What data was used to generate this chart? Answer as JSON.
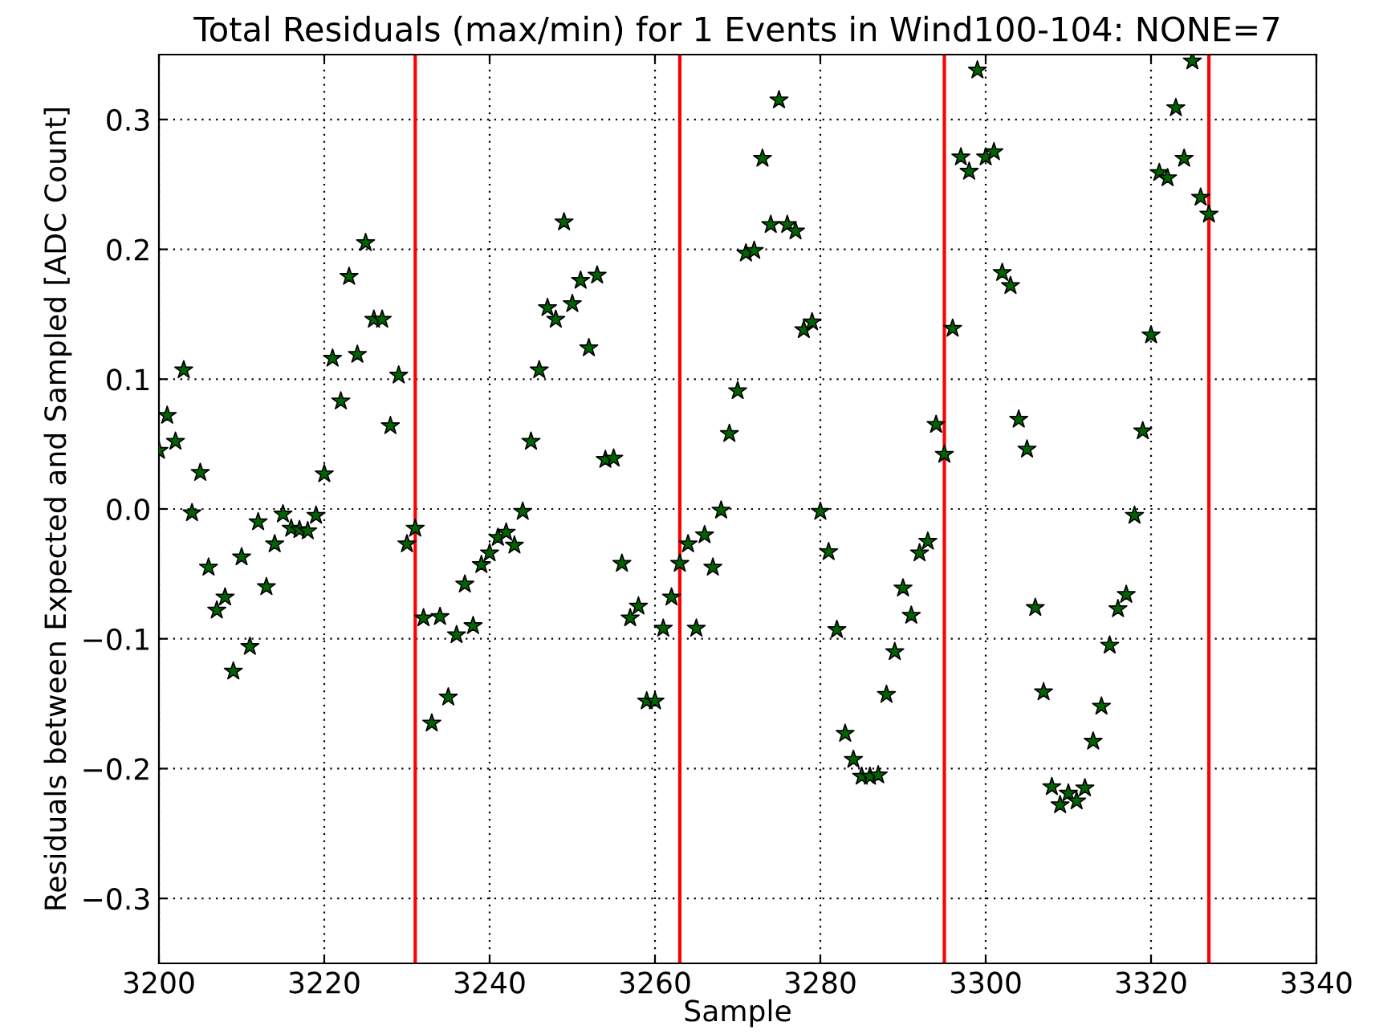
{
  "chart_data": {
    "type": "scatter",
    "title": "Total Residuals (max/min) for 1 Events in Wind100-104: NONE=7",
    "xlabel": "Sample",
    "ylabel": "Residuals between Expected and Sampled [ADC Count]",
    "x": [
      3200,
      3201,
      3202,
      3203,
      3204,
      3205,
      3206,
      3207,
      3208,
      3209,
      3210,
      3211,
      3212,
      3213,
      3214,
      3215,
      3216,
      3217,
      3218,
      3219,
      3220,
      3221,
      3222,
      3223,
      3224,
      3225,
      3226,
      3227,
      3228,
      3229,
      3230,
      3231,
      3232,
      3233,
      3234,
      3235,
      3236,
      3237,
      3238,
      3239,
      3240,
      3241,
      3242,
      3243,
      3244,
      3245,
      3246,
      3247,
      3248,
      3249,
      3250,
      3251,
      3252,
      3253,
      3254,
      3255,
      3256,
      3257,
      3258,
      3259,
      3260,
      3261,
      3262,
      3263,
      3264,
      3265,
      3266,
      3267,
      3268,
      3269,
      3270,
      3271,
      3272,
      3273,
      3274,
      3275,
      3276,
      3277,
      3278,
      3279,
      3280,
      3281,
      3282,
      3283,
      3284,
      3285,
      3286,
      3287,
      3288,
      3289,
      3290,
      3291,
      3292,
      3293,
      3294,
      3295,
      3296,
      3297,
      3298,
      3299,
      3300,
      3301,
      3302,
      3303,
      3304,
      3305,
      3306,
      3307,
      3308,
      3309,
      3310,
      3311,
      3312,
      3313,
      3314,
      3315,
      3316,
      3317,
      3318,
      3319,
      3320,
      3321,
      3322,
      3323,
      3324,
      3325,
      3326,
      3327
    ],
    "series": [
      {
        "color": "#006400",
        "values": [
          0.045,
          0.072,
          0.052,
          0.107,
          -0.003,
          0.028,
          -0.045,
          -0.078,
          -0.068,
          -0.125,
          -0.037,
          -0.106,
          -0.01,
          -0.06,
          -0.027,
          -0.004,
          -0.015,
          -0.016,
          -0.017,
          -0.005,
          0.027,
          0.116,
          0.083,
          0.179,
          0.119,
          0.205,
          0.146,
          0.146,
          0.064,
          0.103,
          -0.027,
          -0.015,
          -0.084,
          -0.165,
          -0.083,
          -0.145,
          -0.097,
          -0.058,
          -0.09,
          -0.043,
          -0.034,
          -0.022,
          -0.018,
          -0.028,
          -0.002,
          0.052,
          0.107,
          0.155,
          0.146,
          0.221,
          0.158,
          0.176,
          0.124,
          0.18,
          0.038,
          0.039,
          -0.042,
          -0.084,
          -0.075,
          -0.148,
          -0.148,
          -0.092,
          -0.068,
          -0.042,
          -0.027,
          -0.092,
          -0.02,
          -0.045,
          -0.001,
          0.058,
          0.091,
          0.197,
          0.199,
          0.27,
          0.219,
          0.315,
          0.219,
          0.214,
          0.138,
          0.144,
          -0.002,
          -0.033,
          -0.093,
          -0.173,
          -0.193,
          -0.206,
          -0.206,
          -0.205,
          -0.143,
          -0.11,
          -0.061,
          -0.082,
          -0.034,
          -0.025,
          0.065,
          0.042,
          0.139,
          0.271,
          0.26,
          0.338,
          0.271,
          0.275,
          0.182,
          0.172,
          0.069,
          0.046,
          -0.076,
          -0.141,
          -0.214,
          -0.228,
          -0.219,
          -0.225,
          -0.215,
          -0.179,
          -0.152,
          -0.105,
          -0.077,
          -0.066,
          -0.005,
          0.06,
          0.134,
          0.259,
          0.255,
          0.309,
          0.27,
          0.345,
          0.24,
          0.227
        ]
      }
    ],
    "xlim": [
      3200,
      3340
    ],
    "xticks": [
      3200,
      3220,
      3240,
      3260,
      3280,
      3300,
      3320,
      3340
    ],
    "ylim": [
      -0.35,
      0.35
    ],
    "yticks": [
      {
        "value": -0.3,
        "label": "−0.3"
      },
      {
        "value": -0.2,
        "label": "−0.2"
      },
      {
        "value": -0.1,
        "label": "−0.1"
      },
      {
        "value": 0.0,
        "label": "0.0"
      },
      {
        "value": 0.1,
        "label": "0.1"
      },
      {
        "value": 0.2,
        "label": "0.2"
      },
      {
        "value": 0.3,
        "label": "0.3"
      }
    ],
    "ref_lines": [
      {
        "axis": "x",
        "value": 3231,
        "color": "#ff0000"
      },
      {
        "axis": "x",
        "value": 3263,
        "color": "#ff0000"
      },
      {
        "axis": "x",
        "value": 3295,
        "color": "#ff0000"
      },
      {
        "axis": "x",
        "value": 3327,
        "color": "#ff0000"
      }
    ],
    "grid": true,
    "marker": "star",
    "legend": false
  }
}
